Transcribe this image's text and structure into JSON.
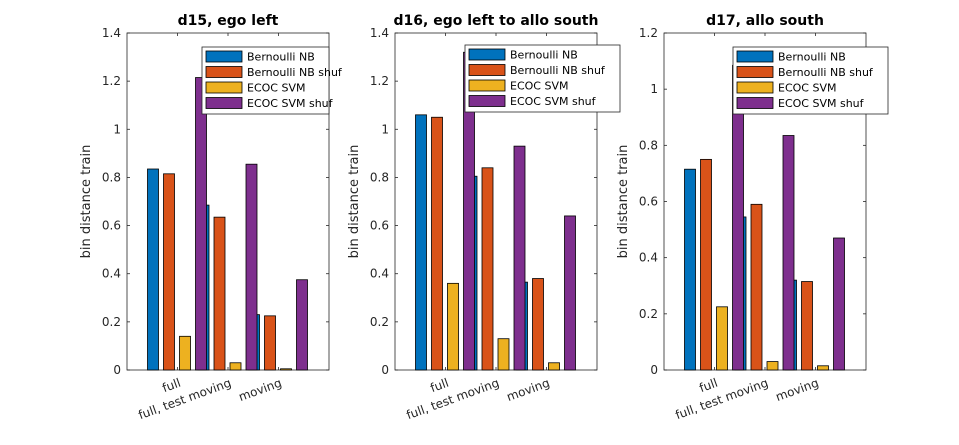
{
  "series_names": [
    "Bernoulli NB",
    "Bernoulli NB shuf",
    "ECOC SVM",
    "ECOC SVM shuf"
  ],
  "series_colors": [
    "#0072BD",
    "#D95319",
    "#EDB120",
    "#7E2F8E"
  ],
  "chart_data": [
    {
      "type": "bar",
      "title": "d15, ego left",
      "ylabel": "bin distance train",
      "xlabel": "",
      "categories": [
        "full",
        "full, test moving",
        "moving"
      ],
      "ylim": [
        0,
        1.4
      ],
      "yticks": [
        "0",
        "0.2",
        "0.4",
        "0.6",
        "0.8",
        "1",
        "1.2",
        "1.4"
      ],
      "legend_position": "top-right",
      "series": [
        {
          "name": "Bernoulli NB",
          "values": [
            0.835,
            0.685,
            0.23
          ]
        },
        {
          "name": "Bernoulli NB shuf",
          "values": [
            0.815,
            0.635,
            0.225
          ]
        },
        {
          "name": "ECOC SVM",
          "values": [
            0.14,
            0.03,
            0.005
          ]
        },
        {
          "name": "ECOC SVM shuf",
          "values": [
            1.215,
            0.855,
            0.375
          ]
        }
      ]
    },
    {
      "type": "bar",
      "title": "d16, ego left to allo south",
      "ylabel": "bin distance train",
      "xlabel": "",
      "categories": [
        "full",
        "full, test moving",
        "moving"
      ],
      "ylim": [
        0,
        1.4
      ],
      "yticks": [
        "0",
        "0.2",
        "0.4",
        "0.6",
        "0.8",
        "1",
        "1.2",
        "1.4"
      ],
      "legend_position": "top-right",
      "series": [
        {
          "name": "Bernoulli NB",
          "values": [
            1.06,
            0.805,
            0.365
          ]
        },
        {
          "name": "Bernoulli NB shuf",
          "values": [
            1.05,
            0.84,
            0.38
          ]
        },
        {
          "name": "ECOC SVM",
          "values": [
            0.36,
            0.13,
            0.03
          ]
        },
        {
          "name": "ECOC SVM shuf",
          "values": [
            1.32,
            0.93,
            0.64
          ]
        }
      ]
    },
    {
      "type": "bar",
      "title": "d17, allo south",
      "ylabel": "bin distance train",
      "xlabel": "",
      "categories": [
        "full",
        "full, test moving",
        "moving"
      ],
      "ylim": [
        0,
        1.2
      ],
      "yticks": [
        "0",
        "0.2",
        "0.4",
        "0.6",
        "0.8",
        "1",
        "1.2"
      ],
      "legend_position": "top-right",
      "series": [
        {
          "name": "Bernoulli NB",
          "values": [
            0.715,
            0.545,
            0.32
          ]
        },
        {
          "name": "Bernoulli NB shuf",
          "values": [
            0.75,
            0.59,
            0.315
          ]
        },
        {
          "name": "ECOC SVM",
          "values": [
            0.225,
            0.03,
            0.015
          ]
        },
        {
          "name": "ECOC SVM shuf",
          "values": [
            1.085,
            0.835,
            0.47
          ]
        }
      ]
    }
  ]
}
